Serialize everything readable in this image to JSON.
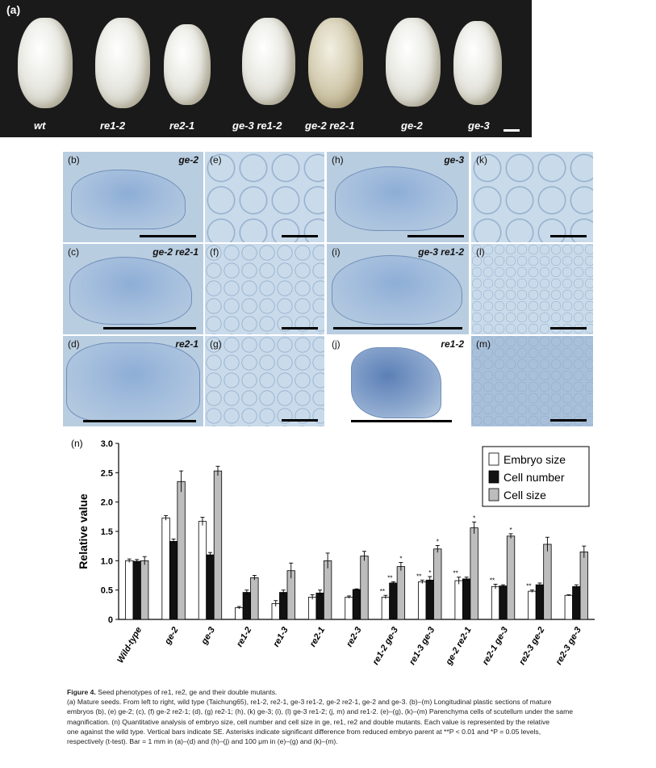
{
  "figure_title": "Figure 4.",
  "figure_title_rest": "Seed phenotypes of re1, re2, ge and their double mutants.",
  "caption_lines": [
    "(a) Mature seeds. From left to right, wild type (Taichung65), re1-2, re2-1, ge-3 re1-2, ge-2 re2-1, ge-2 and ge-3. (b)–(m) Longitudinal plastic sections of mature",
    "embryos (b), (e) ge-2; (c), (f) ge-2 re2-1; (d), (g) re2-1; (h), (k) ge-3; (i), (l) ge-3 re1-2; (j, m) and re1-2. (e)–(g), (k)–(m) Parenchyma cells of scutellum under the same",
    "magnification. (n) Quantitative analysis of embryo size, cell number and cell size in ge, re1, re2 and double mutants. Each value is represented by the relative",
    "one against the wild type. Vertical bars indicate SE. Asterisks indicate significant difference from reduced embryo parent at **P < 0.01 and *P = 0.05 levels,",
    "respectively (t-test). Bar = 1 mm in (a)–(d) and (h)–(j) and 100 μm in (e)–(g) and (k)–(m)."
  ],
  "panel_a": {
    "label": "(a)",
    "seeds": [
      "wt",
      "re1-2",
      "re2-1",
      "ge-3 re1-2",
      "ge-2 re2-1",
      "ge-2",
      "ge-3"
    ]
  },
  "micro_panels": [
    {
      "label": "(b)",
      "genotype": "ge-2"
    },
    {
      "label": "(e)",
      "genotype": ""
    },
    {
      "label": "(h)",
      "genotype": "ge-3"
    },
    {
      "label": "(k)",
      "genotype": ""
    },
    {
      "label": "(c)",
      "genotype": "ge-2 re2-1"
    },
    {
      "label": "(f)",
      "genotype": ""
    },
    {
      "label": "(i)",
      "genotype": "ge-3 re1-2"
    },
    {
      "label": "(l)",
      "genotype": ""
    },
    {
      "label": "(d)",
      "genotype": "re2-1"
    },
    {
      "label": "(g)",
      "genotype": ""
    },
    {
      "label": "(j)",
      "genotype": "re1-2"
    },
    {
      "label": "(m)",
      "genotype": ""
    }
  ],
  "colors": {
    "embryo_size": "#ffffff",
    "cell_number": "#111111",
    "cell_size": "#bdbdbd",
    "panel_a_bg": "#1a1a1a",
    "micrograph_bg": "#b9cde0"
  },
  "chart_data": {
    "type": "bar",
    "panel_label": "(n)",
    "ylabel": "Relative value",
    "xlabel": "",
    "ylim": [
      0,
      3.0
    ],
    "yticks": [
      "0",
      "0.5",
      "1.0",
      "1.5",
      "2.0",
      "2.5",
      "3.0"
    ],
    "legend_position": "top-right",
    "categories": [
      "Wild-type",
      "ge-2",
      "ge-3",
      "re1-2",
      "re1-3",
      "re2-1",
      "re2-3",
      "re1-2 ge-3",
      "re1-3 ge-3",
      "ge-2 re2-1",
      "re2-1 ge-3",
      "re2-3 ge-2",
      "re2-3 ge-3"
    ],
    "series": [
      {
        "name": "Embryo size",
        "values": [
          1.0,
          1.73,
          1.67,
          0.2,
          0.27,
          0.38,
          0.38,
          0.38,
          0.64,
          0.66,
          0.56,
          0.48,
          0.41
        ],
        "errors": [
          0.03,
          0.04,
          0.07,
          0.02,
          0.05,
          0.04,
          0.02,
          0.03,
          0.03,
          0.06,
          0.04,
          0.02,
          0.01
        ],
        "annotations": [
          "",
          "",
          "",
          "",
          "",
          "",
          "",
          "**",
          "**",
          "**",
          "**",
          "**",
          ""
        ]
      },
      {
        "name": "Cell number",
        "values": [
          0.99,
          1.33,
          1.1,
          0.46,
          0.46,
          0.45,
          0.51,
          0.62,
          0.67,
          0.69,
          0.57,
          0.59,
          0.56
        ],
        "errors": [
          0.03,
          0.04,
          0.04,
          0.04,
          0.04,
          0.05,
          0.01,
          0.02,
          0.06,
          0.03,
          0.02,
          0.03,
          0.03
        ],
        "annotations": [
          "",
          "",
          "",
          "",
          "",
          "",
          "",
          "**",
          "*",
          "",
          "",
          "",
          ""
        ]
      },
      {
        "name": "Cell size",
        "values": [
          1.0,
          2.35,
          2.53,
          0.71,
          0.83,
          1.0,
          1.08,
          0.9,
          1.2,
          1.56,
          1.42,
          1.28,
          1.15
        ],
        "errors": [
          0.07,
          0.18,
          0.08,
          0.04,
          0.13,
          0.13,
          0.08,
          0.07,
          0.06,
          0.1,
          0.04,
          0.12,
          0.1
        ],
        "annotations": [
          "",
          "",
          "",
          "",
          "",
          "",
          "",
          "*",
          "*",
          "*",
          "*",
          "",
          ""
        ]
      }
    ]
  }
}
